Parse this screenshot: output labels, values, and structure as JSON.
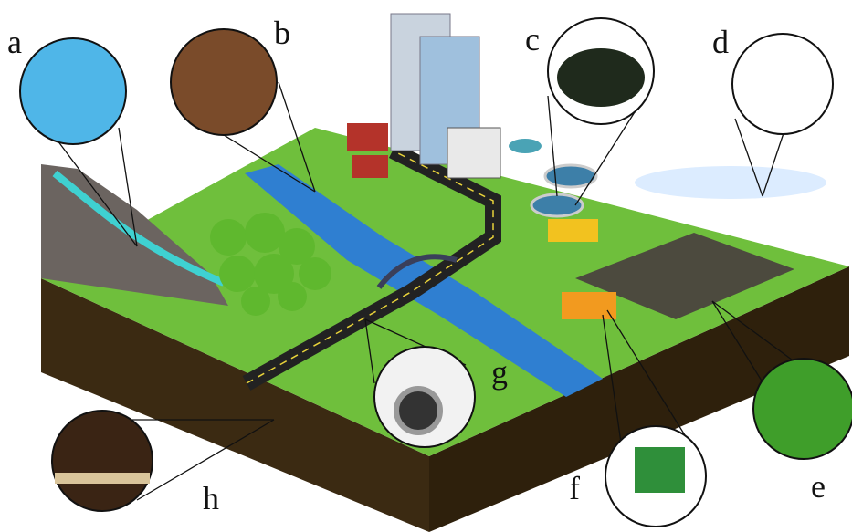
{
  "labels": [
    "a",
    "b",
    "c",
    "d",
    "e",
    "f",
    "g",
    "h"
  ]
}
